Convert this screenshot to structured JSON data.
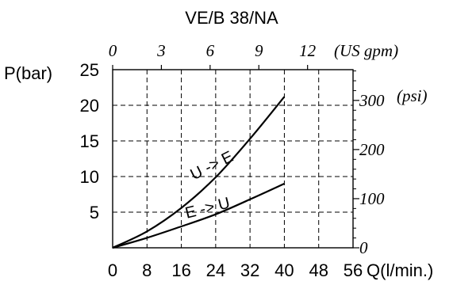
{
  "chart_data": {
    "type": "line",
    "title": "VE/B 38/NA",
    "xlabel": "Q(l/min.)",
    "ylabel": "P(bar)",
    "xlim": [
      0,
      56
    ],
    "ylim": [
      0,
      25
    ],
    "x_ticks": [
      "0",
      "8",
      "16",
      "24",
      "32",
      "40",
      "48",
      "56"
    ],
    "y_ticks": [
      "5",
      "10",
      "15",
      "20",
      "25"
    ],
    "top_axis": {
      "label": "(US gpm)",
      "ticks": [
        "0",
        "3",
        "6",
        "9",
        "12"
      ],
      "lim": [
        0,
        14.8
      ]
    },
    "right_axis": {
      "label": "(psi)",
      "ticks": [
        "0",
        "100",
        "200",
        "300"
      ],
      "lim": [
        0,
        362.6
      ]
    },
    "grid": true,
    "series": [
      {
        "name": "U -> E",
        "x": [
          0,
          8,
          16,
          24,
          32,
          40
        ],
        "y": [
          0,
          2.3,
          5.6,
          9.9,
          15.3,
          21.2
        ]
      },
      {
        "name": "E -> U",
        "x": [
          0,
          8,
          16,
          24,
          32,
          40
        ],
        "y": [
          0,
          1.4,
          3.0,
          4.7,
          6.8,
          9.0
        ]
      }
    ]
  }
}
